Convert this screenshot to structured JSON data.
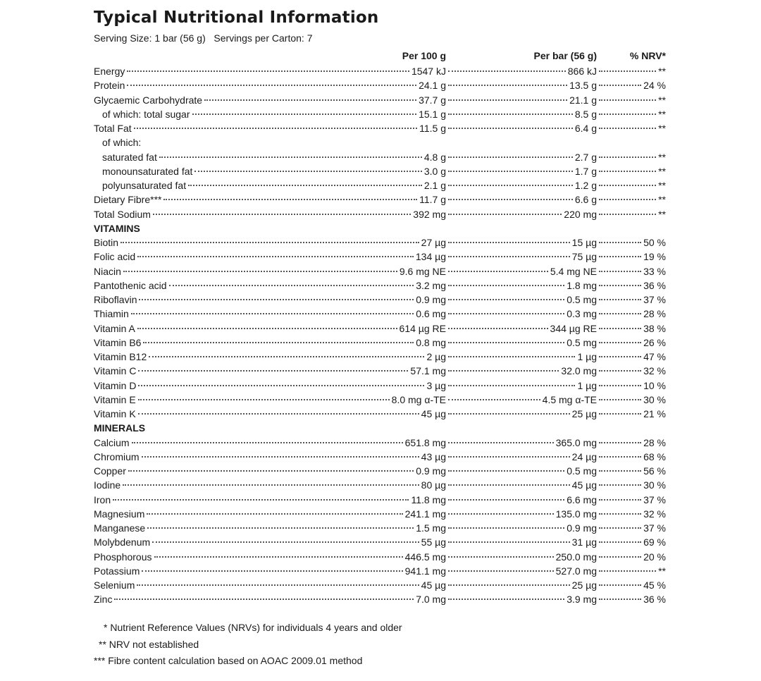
{
  "title": "Typical Nutritional Information",
  "serving": "Serving Size: 1 bar (56 g)   Servings per Carton: 7",
  "table": {
    "header": [
      "Per 100 g",
      "Per bar (56 g)",
      "% NRV*"
    ],
    "rows": [
      [
        "Energy",
        "1547 kJ",
        "866 kJ",
        "**"
      ],
      [
        "Protein",
        "24.1 g",
        "13.5 g",
        "24 %"
      ],
      [
        "Glycaemic Carbohydrate",
        "37.7 g",
        "21.1 g",
        "**"
      ],
      [
        "of which: total sugar",
        "15.1 g",
        "8.5 g",
        "**"
      ],
      [
        "Total Fat",
        "11.5 g",
        "6.4 g",
        "**"
      ],
      [
        "of which:"
      ],
      [
        "saturated fat",
        "4.8 g",
        "2.7 g",
        "**"
      ],
      [
        "monounsaturated fat",
        "3.0 g",
        "1.7 g",
        "**"
      ],
      [
        "polyunsaturated fat",
        "2.1 g",
        "1.2 g",
        "**"
      ],
      [
        "Dietary Fibre***",
        "11.7 g",
        "6.6 g",
        "**"
      ],
      [
        "Total Sodium",
        "392 mg",
        "220 mg",
        "**"
      ],
      [
        "VITAMINS"
      ],
      [
        "Biotin",
        "27 µg",
        "15 µg",
        "50 %"
      ],
      [
        "Folic acid",
        "134 µg",
        "75 µg",
        "19 %"
      ],
      [
        "Niacin",
        "9.6 mg NE",
        "5.4 mg NE",
        "33 %"
      ],
      [
        "Pantothenic acid",
        "3.2 mg",
        "1.8 mg",
        "36 %"
      ],
      [
        "Riboflavin",
        "0.9 mg",
        "0.5 mg",
        "37 %"
      ],
      [
        "Thiamin",
        "0.6 mg",
        "0.3 mg",
        "28 %"
      ],
      [
        "Vitamin A",
        "614 µg RE",
        "344 µg RE",
        "38 %"
      ],
      [
        "Vitamin B6",
        "0.8 mg",
        "0.5 mg",
        "26 %"
      ],
      [
        "Vitamin B12",
        "2 µg",
        "1 µg",
        "47 %"
      ],
      [
        "Vitamin C",
        "57.1 mg",
        "32.0 mg",
        "32 %"
      ],
      [
        "Vitamin D",
        "3 µg",
        "1 µg",
        "10 %"
      ],
      [
        "Vitamin E",
        "8.0 mg α-TE",
        "4.5 mg α-TE",
        "30 %"
      ],
      [
        "Vitamin K",
        "45 µg",
        "25 µg",
        "21 %"
      ],
      [
        "MINERALS"
      ],
      [
        "Calcium",
        "651.8 mg",
        "365.0 mg",
        "28 %"
      ],
      [
        "Chromium",
        "43 µg",
        "24 µg",
        "68 %"
      ],
      [
        "Copper",
        "0.9 mg",
        "0.5 mg",
        "56 %"
      ],
      [
        "Iodine",
        "80 µg",
        "45 µg",
        "30 %"
      ],
      [
        "Iron",
        "11.8 mg",
        "6.6 mg",
        "37 %"
      ],
      [
        "Magnesium",
        "241.1 mg",
        "135.0 mg",
        "32 %"
      ],
      [
        "Manganese",
        "1.5 mg",
        "0.9 mg",
        "37 %"
      ],
      [
        "Molybdenum",
        "55 µg",
        "31 µg",
        "69 %"
      ],
      [
        "Phosphorous",
        "446.5 mg",
        "250.0 mg",
        "20 %"
      ],
      [
        "Potassium",
        "941.1 mg",
        "527.0 mg",
        "**"
      ],
      [
        "Selenium",
        "45 µg",
        "25 µg",
        "45 %"
      ],
      [
        "Zinc",
        "7.0 mg",
        "3.9 mg",
        "36 %"
      ]
    ]
  },
  "footnotes": [
    "* Nutrient Reference Values (NRVs) for individuals 4 years and older",
    "** NRV not established",
    "*** Fibre content calculation based on AOAC 2009.01 method"
  ]
}
